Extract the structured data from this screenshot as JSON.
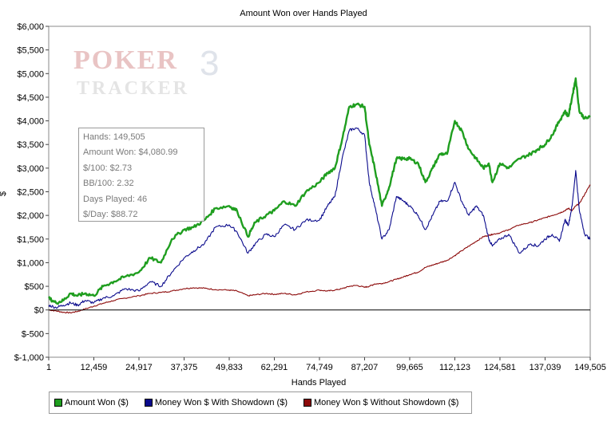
{
  "chart_data": {
    "type": "line",
    "title": "Amount Won over Hands Played",
    "xlabel": "Hands Played",
    "ylabel": "$",
    "xlim": [
      1,
      149505
    ],
    "ylim": [
      -1000,
      6000
    ],
    "x_ticks": [
      "1",
      "12,459",
      "24,917",
      "37,375",
      "49,833",
      "62,291",
      "74,749",
      "87,207",
      "99,665",
      "112,123",
      "124,581",
      "137,039",
      "149,505"
    ],
    "x_tick_values": [
      1,
      12459,
      24917,
      37375,
      49833,
      62291,
      74749,
      87207,
      99665,
      112123,
      124581,
      137039,
      149505
    ],
    "y_ticks": [
      "$6,000",
      "$5,500",
      "$5,000",
      "$4,500",
      "$4,000",
      "$3,500",
      "$3,000",
      "$2,500",
      "$2,000",
      "$1,500",
      "$1,000",
      "$500",
      "$0",
      "$-500",
      "$-1,000"
    ],
    "y_tick_values": [
      6000,
      5500,
      5000,
      4500,
      4000,
      3500,
      3000,
      2500,
      2000,
      1500,
      1000,
      500,
      0,
      -500,
      -1000
    ],
    "legend_position": "bottom-left",
    "series": [
      {
        "name": "Amount Won ($)",
        "color": "#1f9e1f",
        "x": [
          1,
          2000,
          4000,
          6000,
          8000,
          10000,
          12459,
          15000,
          18000,
          21000,
          24917,
          28000,
          31000,
          34000,
          37375,
          40000,
          43000,
          46000,
          49833,
          52000,
          55000,
          57000,
          60000,
          62291,
          65000,
          68000,
          71000,
          74749,
          77000,
          79000,
          81000,
          83000,
          85000,
          87207,
          88500,
          90000,
          92000,
          94000,
          96000,
          98000,
          99665,
          102000,
          104000,
          106000,
          108000,
          110000,
          112123,
          114000,
          116000,
          118000,
          120000,
          121500,
          122500,
          124581,
          127000,
          130000,
          133000,
          135000,
          137039,
          139000,
          141000,
          142500,
          143500,
          144500,
          145500,
          146500,
          148000,
          149505
        ],
        "y": [
          250,
          150,
          200,
          350,
          300,
          350,
          300,
          500,
          600,
          700,
          800,
          1100,
          1000,
          1500,
          1700,
          1750,
          1900,
          2150,
          2200,
          2100,
          1550,
          1850,
          2000,
          2100,
          2300,
          2200,
          2500,
          2700,
          2900,
          3000,
          3600,
          4300,
          4350,
          4300,
          3500,
          3000,
          2200,
          2600,
          3200,
          3200,
          3200,
          3100,
          2700,
          3000,
          3300,
          3300,
          4000,
          3800,
          3400,
          3200,
          3000,
          3100,
          2700,
          3100,
          3000,
          3200,
          3300,
          3400,
          3500,
          3700,
          4000,
          4200,
          4100,
          4500,
          4900,
          4200,
          4050,
          4080
        ]
      },
      {
        "name": "Money Won $ With Showdown ($)",
        "color": "#0a0a8c",
        "x": [
          1,
          2000,
          4000,
          6000,
          8000,
          10000,
          12459,
          15000,
          18000,
          21000,
          24917,
          28000,
          31000,
          34000,
          37375,
          40000,
          43000,
          46000,
          49833,
          52000,
          55000,
          57000,
          60000,
          62291,
          65000,
          68000,
          71000,
          74749,
          77000,
          79000,
          81000,
          83000,
          85000,
          87207,
          88500,
          90000,
          92000,
          94000,
          96000,
          98000,
          99665,
          102000,
          104000,
          106000,
          108000,
          110000,
          112123,
          114000,
          116000,
          118000,
          120000,
          121500,
          122500,
          124581,
          127000,
          130000,
          133000,
          135000,
          137039,
          139000,
          141000,
          142500,
          143500,
          144500,
          145500,
          146500,
          148000,
          149505
        ],
        "y": [
          100,
          50,
          100,
          150,
          100,
          200,
          150,
          250,
          300,
          450,
          400,
          600,
          500,
          800,
          1100,
          1250,
          1400,
          1750,
          1800,
          1650,
          1200,
          1400,
          1600,
          1550,
          1800,
          1700,
          1900,
          1900,
          2200,
          2400,
          3200,
          3800,
          3850,
          3700,
          2700,
          2200,
          1500,
          1700,
          2400,
          2300,
          2200,
          2000,
          1700,
          2000,
          2300,
          2300,
          2700,
          2300,
          2000,
          2200,
          2000,
          1500,
          1350,
          1500,
          1600,
          1200,
          1400,
          1350,
          1500,
          1600,
          1450,
          1900,
          1800,
          2200,
          2950,
          2100,
          1600,
          1500
        ]
      },
      {
        "name": "Money Won $ Without Showdown ($)",
        "color": "#8c0a0a",
        "x": [
          1,
          2000,
          4000,
          6000,
          8000,
          10000,
          12459,
          15000,
          18000,
          21000,
          24917,
          28000,
          31000,
          34000,
          37375,
          40000,
          43000,
          46000,
          49833,
          52000,
          55000,
          57000,
          60000,
          62291,
          65000,
          68000,
          71000,
          74749,
          77000,
          79000,
          81000,
          83000,
          85000,
          87207,
          88500,
          90000,
          92000,
          94000,
          96000,
          98000,
          99665,
          102000,
          104000,
          106000,
          108000,
          110000,
          112123,
          114000,
          116000,
          118000,
          120000,
          121500,
          122500,
          124581,
          127000,
          130000,
          133000,
          135000,
          137039,
          139000,
          141000,
          142500,
          143500,
          144500,
          145500,
          146500,
          148000,
          149505
        ],
        "y": [
          0,
          -20,
          -50,
          -60,
          -30,
          20,
          80,
          140,
          200,
          250,
          300,
          350,
          370,
          400,
          450,
          470,
          460,
          430,
          420,
          400,
          300,
          320,
          350,
          330,
          350,
          320,
          380,
          420,
          400,
          420,
          450,
          500,
          520,
          480,
          500,
          550,
          560,
          600,
          650,
          700,
          750,
          800,
          900,
          950,
          1000,
          1050,
          1150,
          1250,
          1350,
          1450,
          1550,
          1580,
          1600,
          1630,
          1700,
          1800,
          1850,
          1900,
          1950,
          2000,
          2050,
          2100,
          2150,
          2100,
          2200,
          2250,
          2450,
          2650
        ]
      }
    ]
  },
  "stats_box": {
    "hands": "Hands: 149,505",
    "amount_won": "Amount Won: $4,080.99",
    "per_100": "$/100: $2.73",
    "bb_100": "BB/100: 2.32",
    "days_played": "Days Played: 46",
    "per_day": "$/Day: $88.72"
  },
  "watermark": {
    "line1": "POKER",
    "line2": "TRACKER",
    "number": "3"
  }
}
